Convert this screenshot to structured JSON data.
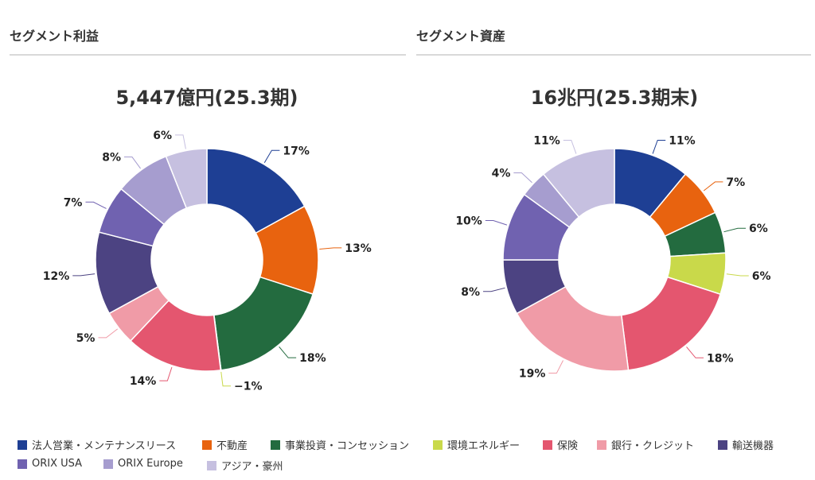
{
  "panels": [
    {
      "title": "セグメント利益"
    },
    {
      "title": "セグメント資産"
    }
  ],
  "segments": [
    {
      "name": "法人営業・メンテナンスリース",
      "color": "#1e3f94"
    },
    {
      "name": "不動産",
      "color": "#e8630f"
    },
    {
      "name": "事業投資・コンセッション",
      "color": "#236b3f"
    },
    {
      "name": "環境エネルギー",
      "color": "#c9d94a"
    },
    {
      "name": "保険",
      "color": "#e4566f"
    },
    {
      "name": "銀行・クレジット",
      "color": "#f09ba7"
    },
    {
      "name": "輸送機器",
      "color": "#4c4382"
    },
    {
      "name": "ORIX USA",
      "color": "#7062b0"
    },
    {
      "name": "ORIX Europe",
      "color": "#a69dcf"
    },
    {
      "name": "アジア・豪州",
      "color": "#c6c0e0"
    }
  ],
  "chart_data": [
    {
      "type": "pie",
      "title": "5,447億円(25.3期)",
      "values": [
        17,
        13,
        18,
        -1,
        14,
        5,
        12,
        7,
        8,
        6
      ],
      "labels": [
        "17%",
        "13%",
        "18%",
        "−1%",
        "14%",
        "5%",
        "12%",
        "7%",
        "8%",
        "6%"
      ]
    },
    {
      "type": "pie",
      "title": "16兆円(25.3期末)",
      "values": [
        11,
        7,
        6,
        6,
        18,
        19,
        8,
        10,
        4,
        11
      ],
      "labels": [
        "11%",
        "7%",
        "6%",
        "6%",
        "18%",
        "19%",
        "8%",
        "10%",
        "4%",
        "11%"
      ]
    }
  ]
}
